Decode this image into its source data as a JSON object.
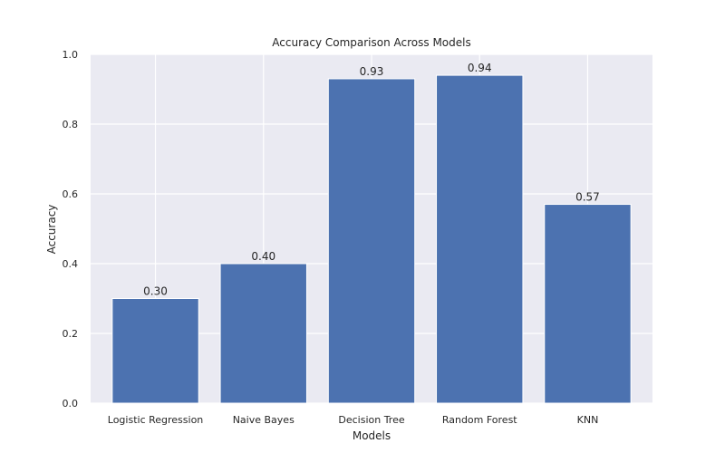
{
  "chart_data": {
    "type": "bar",
    "title": "Accuracy Comparison Across Models",
    "xlabel": "Models",
    "ylabel": "Accuracy",
    "categories": [
      "Logistic Regression",
      "Naive Bayes",
      "Decision Tree",
      "Random Forest",
      "KNN"
    ],
    "values": [
      0.3,
      0.4,
      0.93,
      0.94,
      0.57
    ],
    "data_labels": [
      "0.30",
      "0.40",
      "0.93",
      "0.94",
      "0.57"
    ],
    "ylim": [
      0,
      1.0
    ],
    "yticks": [
      0.0,
      0.2,
      0.4,
      0.6,
      0.8,
      1.0
    ],
    "ytick_labels": [
      "0.0",
      "0.2",
      "0.4",
      "0.6",
      "0.8",
      "1.0"
    ],
    "grid": true,
    "style": {
      "background": "#eaeaf2",
      "bar_color": "#4c72b0",
      "grid_color": "#ffffff",
      "text_color": "#262626"
    }
  }
}
